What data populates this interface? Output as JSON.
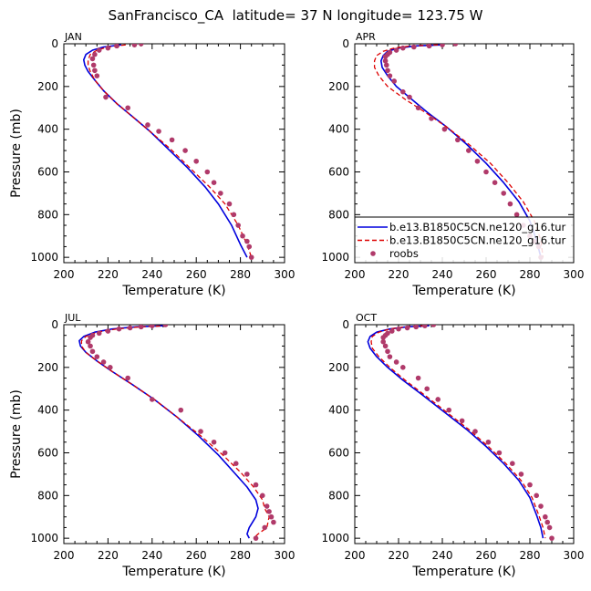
{
  "title": "SanFrancisco_CA  latitude= 37 N longitude= 123.75 W",
  "legend": {
    "entries": [
      {
        "label": "b.e13.B1850C5CN.ne120_g16.tur",
        "color": "#0000dd",
        "style": "solid"
      },
      {
        "label": "b.e13.B1850C5CN.ne120_g16.tur",
        "color": "#dd0000",
        "style": "dashed"
      },
      {
        "label": "roobs",
        "color": "#b03a6a",
        "style": "dots"
      }
    ]
  },
  "chart_data": [
    {
      "type": "line",
      "panel": "JAN",
      "xlabel": "Temperature (K)",
      "ylabel": "Pressure (mb)",
      "xlim": [
        200,
        300
      ],
      "ylim": [
        1025,
        0
      ],
      "xticks": [
        200,
        220,
        240,
        260,
        280,
        300
      ],
      "yticks": [
        0,
        200,
        400,
        600,
        800,
        1000
      ],
      "series": [
        {
          "style": "solid",
          "color": "#0000dd",
          "x": [
            226,
            218,
            213,
            210,
            209,
            209.5,
            211,
            214,
            218,
            224,
            231,
            239,
            247,
            256,
            264,
            270,
            276,
            280,
            283
          ],
          "y": [
            5,
            15,
            30,
            50,
            75,
            100,
            130,
            170,
            220,
            280,
            340,
            410,
            490,
            580,
            670,
            750,
            850,
            940,
            1000
          ]
        },
        {
          "style": "dashed",
          "color": "#dd0000",
          "x": [
            228,
            220,
            215,
            212,
            211,
            211,
            212,
            214,
            218,
            224,
            231,
            239,
            248,
            257,
            266,
            273,
            279,
            283,
            285
          ],
          "y": [
            5,
            15,
            30,
            50,
            75,
            100,
            130,
            170,
            220,
            280,
            340,
            410,
            490,
            580,
            670,
            750,
            850,
            940,
            1000
          ]
        },
        {
          "style": "dots",
          "color": "#b03a6a",
          "x": [
            235,
            232,
            224,
            220,
            216,
            214,
            213,
            213.5,
            214,
            215,
            219,
            229,
            238,
            243,
            249,
            255,
            260,
            265,
            268,
            271,
            275,
            277,
            279,
            281,
            283,
            284,
            285
          ],
          "y": [
            0,
            5,
            10,
            20,
            30,
            50,
            70,
            100,
            125,
            150,
            250,
            300,
            380,
            410,
            450,
            500,
            550,
            600,
            650,
            700,
            750,
            800,
            850,
            900,
            925,
            950,
            1000
          ]
        }
      ]
    },
    {
      "type": "line",
      "panel": "APR",
      "xlabel": "Temperature (K)",
      "ylabel": "",
      "xlim": [
        200,
        300
      ],
      "ylim": [
        1025,
        0
      ],
      "xticks": [
        200,
        220,
        240,
        260,
        280,
        300
      ],
      "yticks": [
        0,
        200,
        400,
        600,
        800,
        1000
      ],
      "series": [
        {
          "style": "solid",
          "color": "#0000dd",
          "x": [
            240,
            228,
            220,
            215,
            213,
            212,
            212.5,
            215,
            219,
            226,
            233,
            242,
            251,
            260,
            268,
            275,
            280,
            283,
            285
          ],
          "y": [
            5,
            10,
            20,
            35,
            55,
            80,
            110,
            150,
            200,
            260,
            320,
            390,
            470,
            560,
            650,
            740,
            830,
            920,
            1000
          ]
        },
        {
          "style": "dashed",
          "color": "#dd0000",
          "x": [
            238,
            226,
            218,
            213,
            210,
            209,
            209,
            211,
            215,
            223,
            232,
            242,
            252,
            262,
            270,
            277,
            282,
            285,
            286
          ],
          "y": [
            5,
            10,
            20,
            35,
            55,
            80,
            110,
            150,
            200,
            260,
            320,
            390,
            470,
            560,
            650,
            740,
            830,
            920,
            1000
          ]
        },
        {
          "style": "dots",
          "color": "#b03a6a",
          "x": [
            246,
            240,
            234,
            227,
            222,
            219,
            216,
            215,
            214,
            214,
            214.5,
            215,
            216,
            218,
            222,
            225,
            229,
            235,
            241,
            247,
            252,
            256,
            260,
            264,
            268,
            271,
            274,
            277,
            280,
            282,
            284,
            285
          ],
          "y": [
            0,
            5,
            10,
            15,
            20,
            30,
            40,
            50,
            60,
            80,
            100,
            125,
            150,
            175,
            225,
            250,
            300,
            350,
            400,
            450,
            500,
            550,
            600,
            650,
            700,
            750,
            800,
            850,
            900,
            925,
            950,
            1000
          ]
        }
      ]
    },
    {
      "type": "line",
      "panel": "JUL",
      "xlabel": "Temperature (K)",
      "ylabel": "Pressure (mb)",
      "xlim": [
        200,
        300
      ],
      "ylim": [
        1025,
        0
      ],
      "xticks": [
        200,
        220,
        240,
        260,
        280,
        300
      ],
      "yticks": [
        0,
        200,
        400,
        600,
        800,
        1000
      ],
      "series": [
        {
          "style": "solid",
          "color": "#0000dd",
          "x": [
            245,
            233,
            222,
            214,
            209,
            207,
            207.5,
            210,
            215,
            222,
            231,
            241,
            251,
            261,
            270,
            277,
            283,
            287,
            288,
            287,
            284,
            283,
            284
          ],
          "y": [
            5,
            10,
            20,
            35,
            55,
            75,
            100,
            130,
            170,
            220,
            280,
            350,
            430,
            520,
            610,
            690,
            760,
            820,
            860,
            900,
            950,
            980,
            1000
          ]
        },
        {
          "style": "dashed",
          "color": "#dd0000",
          "x": [
            247,
            235,
            224,
            215,
            210,
            208,
            208,
            210,
            215,
            222,
            231,
            241,
            251,
            262,
            272,
            280,
            286,
            290,
            291,
            293,
            292,
            288,
            286
          ],
          "y": [
            5,
            10,
            20,
            35,
            55,
            75,
            100,
            130,
            170,
            220,
            280,
            350,
            430,
            520,
            610,
            690,
            760,
            820,
            860,
            900,
            950,
            980,
            1000
          ]
        },
        {
          "style": "dots",
          "color": "#b03a6a",
          "x": [
            246,
            240,
            235,
            230,
            225,
            220,
            216,
            213,
            212,
            211,
            212,
            213,
            215,
            218,
            221,
            229,
            240,
            253,
            262,
            268,
            273,
            278,
            283,
            287,
            290,
            292,
            293,
            294,
            295,
            291,
            287
          ],
          "y": [
            0,
            5,
            10,
            15,
            20,
            30,
            40,
            50,
            60,
            80,
            100,
            125,
            150,
            175,
            200,
            250,
            350,
            400,
            500,
            550,
            600,
            650,
            700,
            750,
            800,
            850,
            875,
            900,
            925,
            950,
            1000
          ]
        }
      ]
    },
    {
      "type": "line",
      "panel": "OCT",
      "xlabel": "Temperature (K)",
      "ylabel": "",
      "xlim": [
        200,
        300
      ],
      "ylim": [
        1025,
        0
      ],
      "xticks": [
        200,
        220,
        240,
        260,
        280,
        300
      ],
      "yticks": [
        0,
        200,
        400,
        600,
        800,
        1000
      ],
      "series": [
        {
          "style": "solid",
          "color": "#0000dd",
          "x": [
            234,
            224,
            216,
            210,
            207,
            206,
            207,
            210,
            215,
            222,
            231,
            241,
            251,
            260,
            268,
            275,
            280,
            283,
            285,
            286
          ],
          "y": [
            5,
            10,
            20,
            35,
            55,
            80,
            110,
            150,
            200,
            260,
            330,
            410,
            490,
            570,
            650,
            730,
            810,
            890,
            950,
            1000
          ]
        },
        {
          "style": "dashed",
          "color": "#dd0000",
          "x": [
            232,
            223,
            216,
            211,
            208,
            207.5,
            208,
            211,
            216,
            223,
            232,
            242,
            252,
            261,
            269,
            276,
            281,
            284,
            286,
            287
          ],
          "y": [
            5,
            10,
            20,
            35,
            55,
            80,
            110,
            150,
            200,
            260,
            330,
            410,
            490,
            570,
            650,
            730,
            810,
            890,
            950,
            1000
          ]
        },
        {
          "style": "dots",
          "color": "#b03a6a",
          "x": [
            236,
            232,
            228,
            224,
            220,
            217,
            215,
            214,
            213,
            213,
            214,
            215,
            216,
            219,
            222,
            229,
            233,
            238,
            243,
            249,
            255,
            261,
            266,
            272,
            276,
            280,
            283,
            285,
            287,
            288,
            289,
            290
          ],
          "y": [
            0,
            5,
            10,
            15,
            20,
            30,
            40,
            50,
            60,
            80,
            100,
            125,
            150,
            175,
            200,
            250,
            300,
            350,
            400,
            450,
            500,
            550,
            600,
            650,
            700,
            750,
            800,
            850,
            900,
            925,
            950,
            1000
          ]
        }
      ]
    }
  ]
}
